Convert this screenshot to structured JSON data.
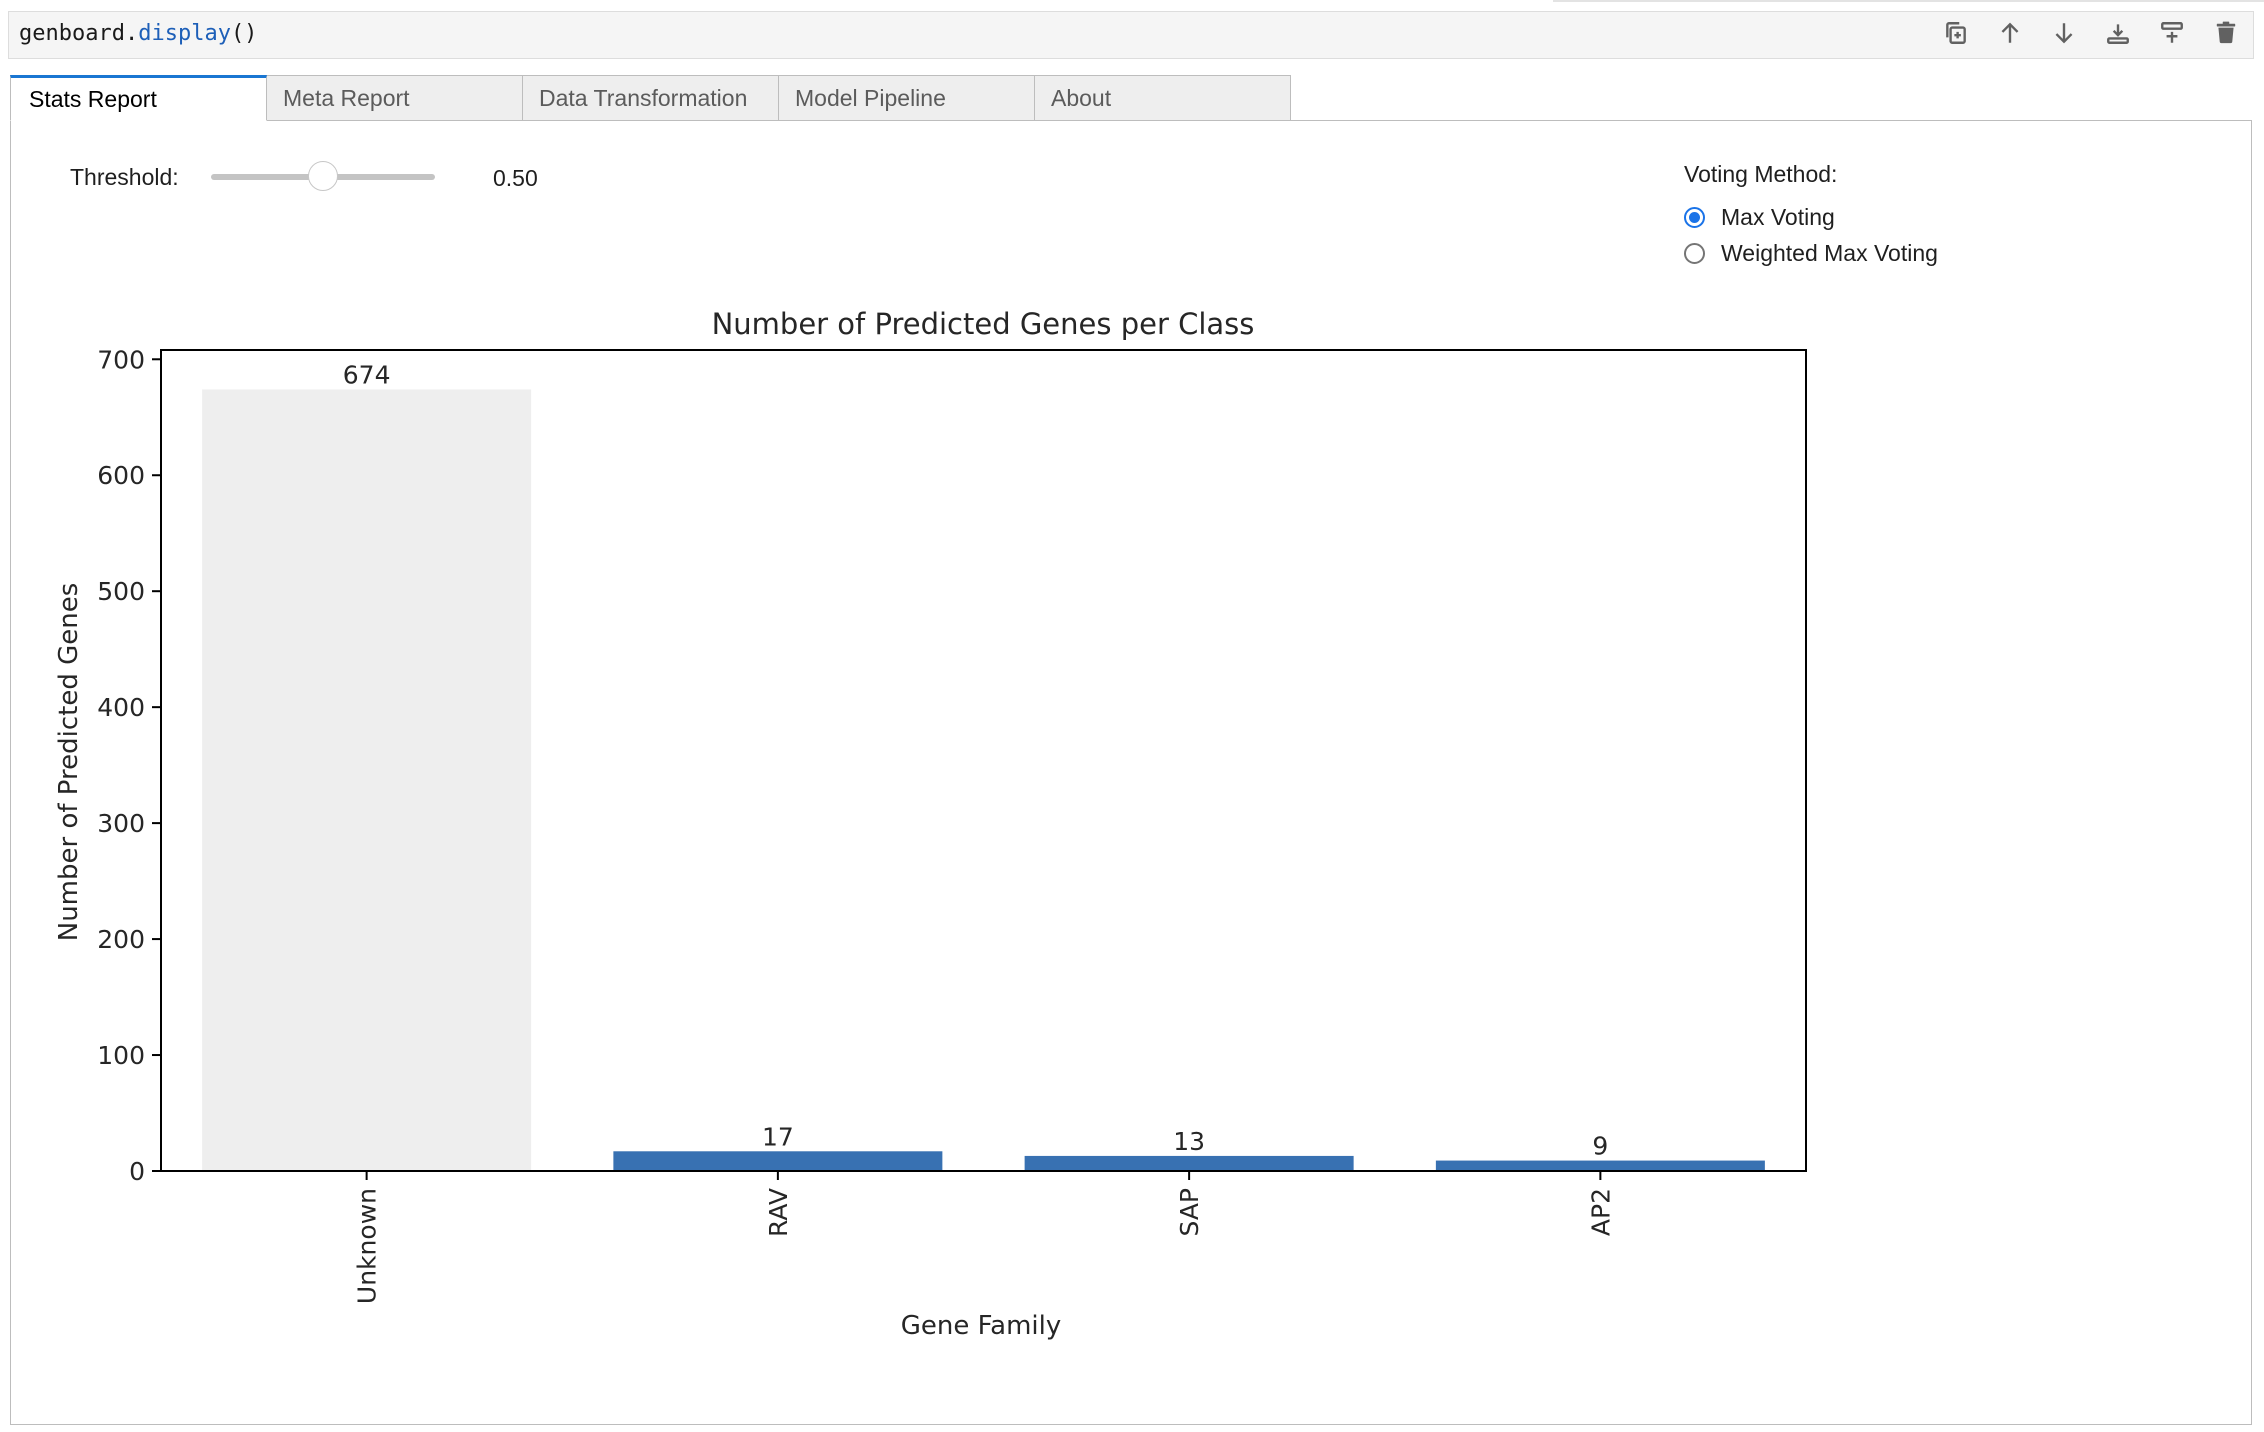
{
  "code_cell": {
    "object": "genboard",
    "dot": ".",
    "method": "display",
    "parens": "()"
  },
  "toolbar": {
    "buttons": [
      "duplicate-icon",
      "move-up-icon",
      "move-down-icon",
      "insert-below-icon",
      "insert-above-icon",
      "delete-icon"
    ]
  },
  "tabs": [
    "Stats Report",
    "Meta Report",
    "Data Transformation",
    "Model Pipeline",
    "About"
  ],
  "active_tab": "Stats Report",
  "threshold": {
    "label": "Threshold:",
    "value": 0.5,
    "value_text": "0.50",
    "min": 0,
    "max": 1
  },
  "voting": {
    "title": "Voting Method:",
    "options": [
      "Max Voting",
      "Weighted Max Voting"
    ],
    "selected": "Max Voting"
  },
  "colors": {
    "accent": "#1976d2",
    "bar": "#3871b2",
    "unknown_bar": "#eeeeee"
  },
  "chart_data": {
    "type": "bar",
    "title": "Number of Predicted Genes per Class",
    "xlabel": "Gene Family",
    "ylabel": "Number of Predicted Genes",
    "categories": [
      "Unknown",
      "RAV",
      "SAP",
      "AP2"
    ],
    "values": [
      674,
      17,
      13,
      9
    ],
    "data_labels": [
      "674",
      "17",
      "13",
      "9"
    ],
    "bar_colors": [
      "#eeeeee",
      "#3871b2",
      "#3871b2",
      "#3871b2"
    ],
    "ylim": [
      0,
      708
    ],
    "yticks": [
      0,
      100,
      200,
      300,
      400,
      500,
      600,
      700
    ],
    "grid": false
  }
}
